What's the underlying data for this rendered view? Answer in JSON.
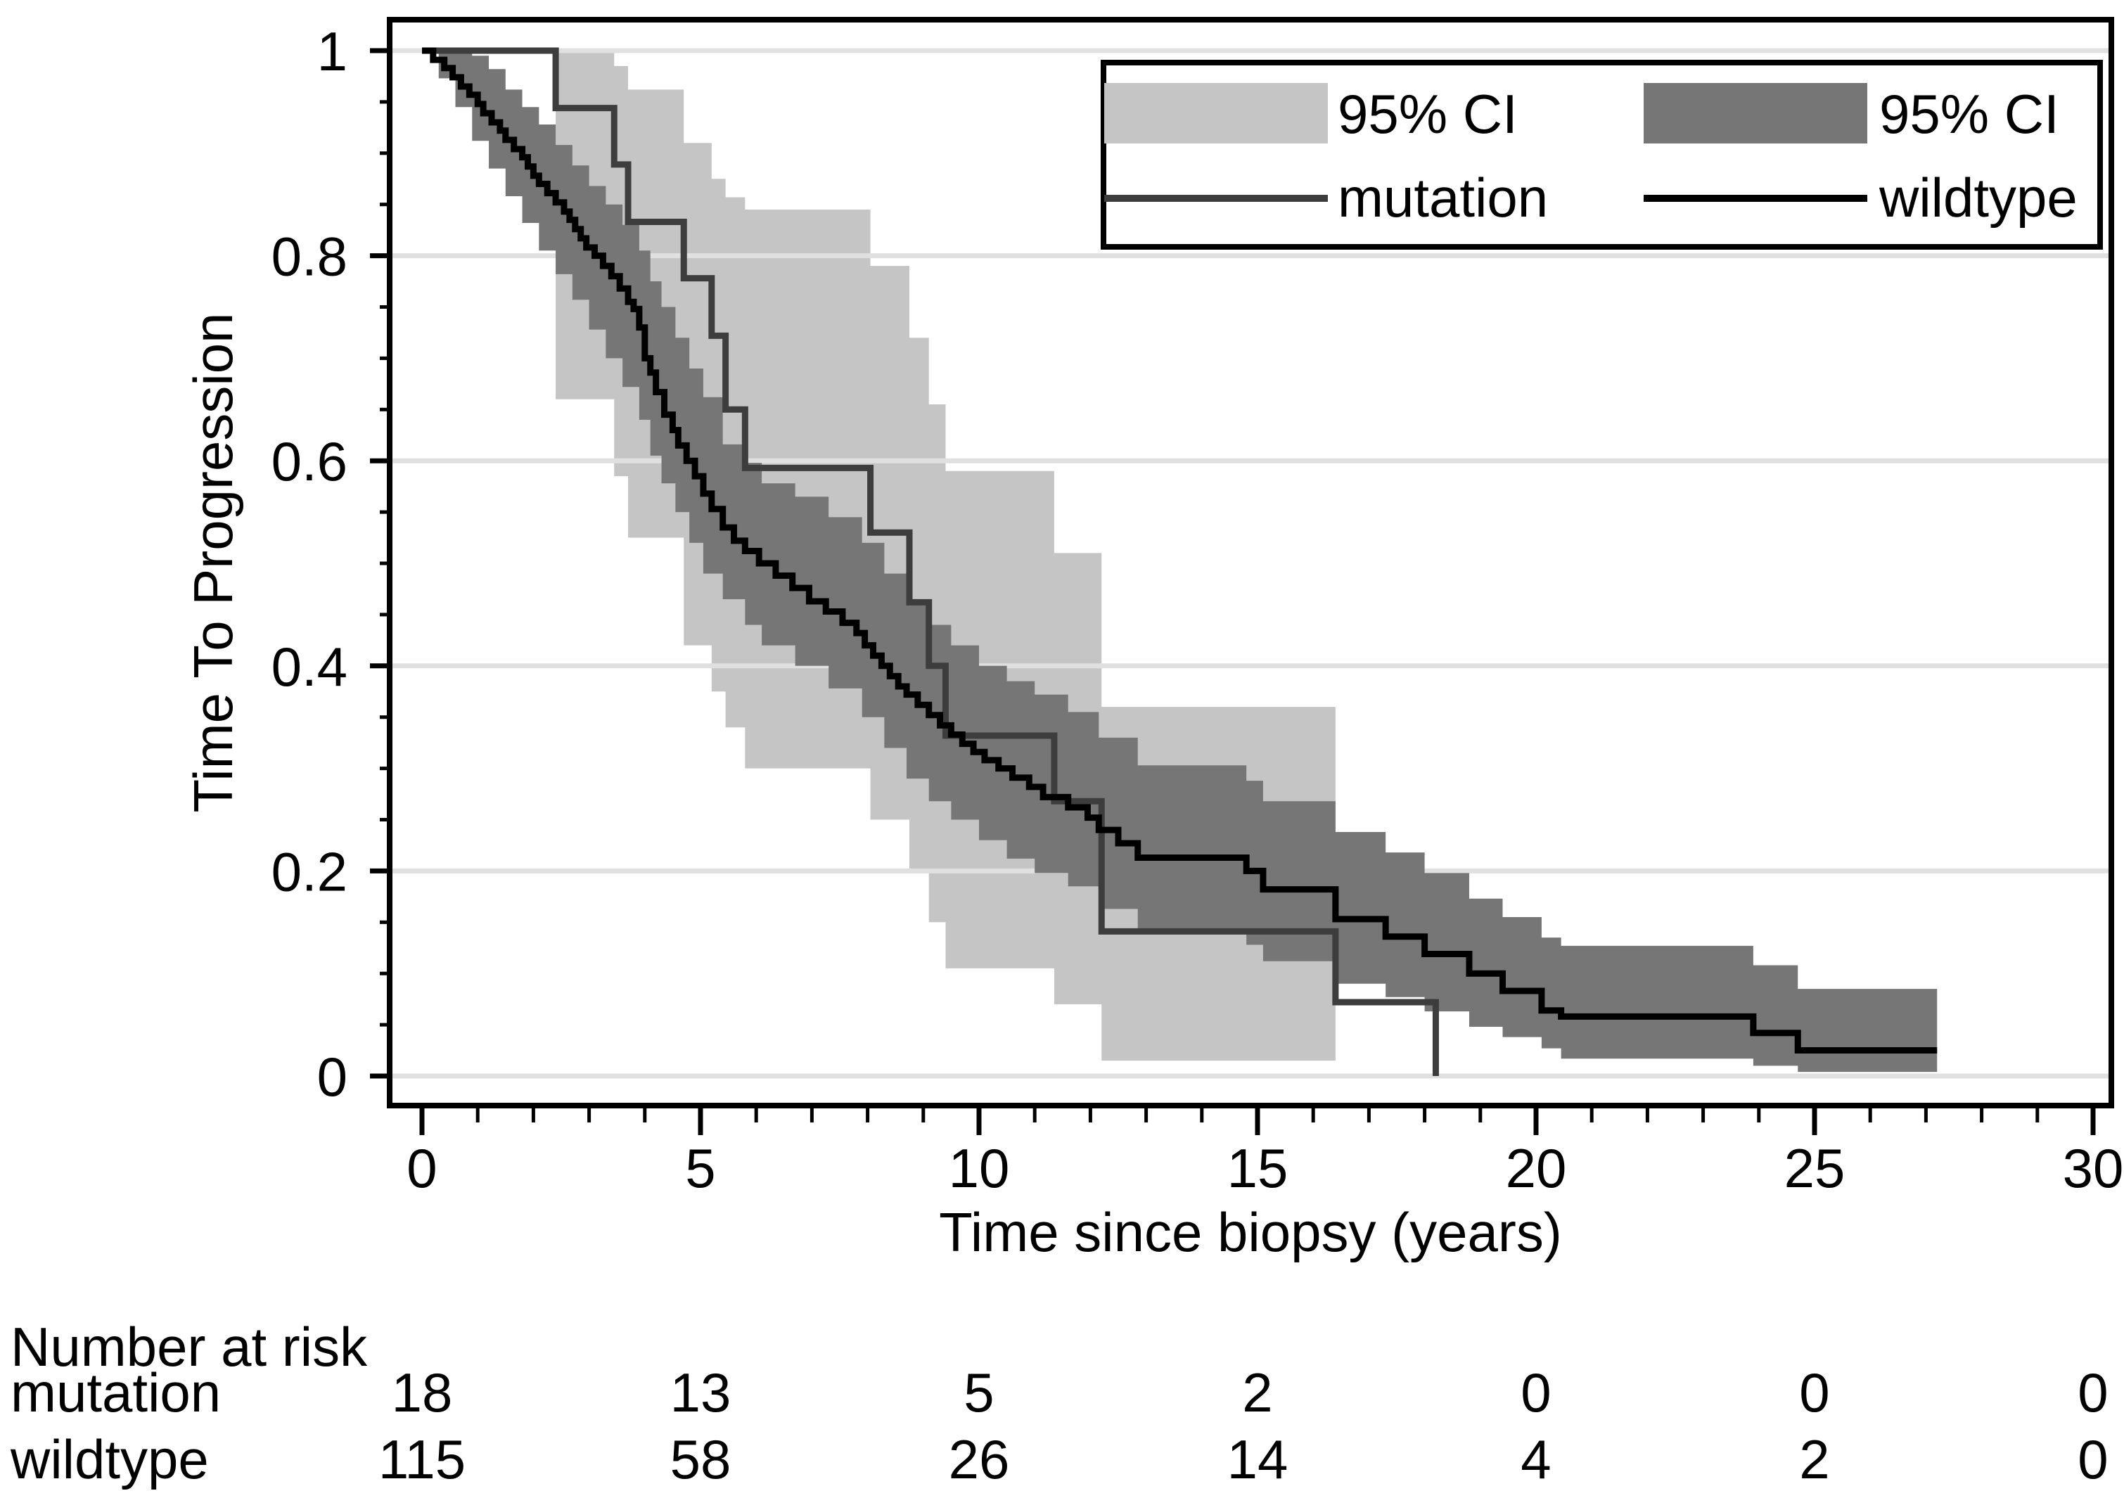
{
  "chart_data": {
    "type": "line",
    "subtype": "kaplan-meier-survival",
    "title": "",
    "xlabel": "Time since biopsy (years)",
    "ylabel": "Time To Progression",
    "xlim": [
      0,
      30
    ],
    "ylim": [
      0,
      1
    ],
    "x_ticks": [
      0,
      5,
      10,
      15,
      20,
      25,
      30
    ],
    "x_minor_tick_step": 1,
    "y_ticks": [
      {
        "value": 1.0,
        "label": "1"
      },
      {
        "value": 0.8,
        "label": "0.8"
      },
      {
        "value": 0.6,
        "label": "0.6"
      },
      {
        "value": 0.4,
        "label": "0.4"
      },
      {
        "value": 0.2,
        "label": "0.2"
      },
      {
        "value": 0.0,
        "label": "0"
      }
    ],
    "y_minor_tick_step": 0.05,
    "grid": "horizontal-major",
    "colors": {
      "mutation_ci_fill": "#c5c5c5",
      "wildtype_ci_fill": "#767676",
      "mutation_line": "#3d3d3d",
      "wildtype_line": "#000000",
      "gridline": "#e0e0e0",
      "axis": "#000000",
      "background": "#ffffff"
    },
    "legend": {
      "position": "top-right",
      "entries": [
        {
          "kind": "swatch",
          "color": "#c5c5c5",
          "label": "95% CI"
        },
        {
          "kind": "swatch",
          "color": "#767676",
          "label": "95% CI"
        },
        {
          "kind": "line",
          "color": "#3d3d3d",
          "label": "mutation"
        },
        {
          "kind": "line",
          "color": "#000000",
          "label": "wildtype"
        }
      ]
    },
    "series": [
      {
        "name": "mutation",
        "kind": "step-curve",
        "color": "#3d3d3d",
        "end_time": 18.2,
        "steps": [
          [
            0,
            1
          ],
          [
            2.4,
            0.944
          ],
          [
            3.45,
            0.889
          ],
          [
            3.7,
            0.833
          ],
          [
            4.7,
            0.778
          ],
          [
            5.2,
            0.722
          ],
          [
            5.45,
            0.65
          ],
          [
            5.8,
            0.593
          ],
          [
            8.05,
            0.53
          ],
          [
            8.75,
            0.462
          ],
          [
            9.1,
            0.4
          ],
          [
            9.4,
            0.332
          ],
          [
            11.35,
            0.268
          ],
          [
            12.2,
            0.141
          ],
          [
            16.4,
            0.072
          ],
          [
            18.2,
            0
          ]
        ]
      },
      {
        "name": "wildtype",
        "kind": "step-curve",
        "color": "#000000",
        "end_time": 27.2,
        "steps": [
          [
            0,
            1
          ],
          [
            0.2,
            0.991
          ],
          [
            0.4,
            0.983
          ],
          [
            0.55,
            0.974
          ],
          [
            0.7,
            0.965
          ],
          [
            0.85,
            0.957
          ],
          [
            1.0,
            0.948
          ],
          [
            1.1,
            0.939
          ],
          [
            1.25,
            0.93
          ],
          [
            1.4,
            0.922
          ],
          [
            1.5,
            0.913
          ],
          [
            1.65,
            0.904
          ],
          [
            1.8,
            0.896
          ],
          [
            1.9,
            0.887
          ],
          [
            2.0,
            0.878
          ],
          [
            2.1,
            0.87
          ],
          [
            2.25,
            0.861
          ],
          [
            2.4,
            0.852
          ],
          [
            2.55,
            0.843
          ],
          [
            2.65,
            0.835
          ],
          [
            2.75,
            0.826
          ],
          [
            2.85,
            0.817
          ],
          [
            2.95,
            0.808
          ],
          [
            3.1,
            0.8
          ],
          [
            3.25,
            0.79
          ],
          [
            3.4,
            0.78
          ],
          [
            3.55,
            0.768
          ],
          [
            3.7,
            0.755
          ],
          [
            3.8,
            0.748
          ],
          [
            3.9,
            0.73
          ],
          [
            4.0,
            0.7
          ],
          [
            4.1,
            0.686
          ],
          [
            4.2,
            0.667
          ],
          [
            4.35,
            0.645
          ],
          [
            4.5,
            0.63
          ],
          [
            4.6,
            0.615
          ],
          [
            4.75,
            0.6
          ],
          [
            4.9,
            0.585
          ],
          [
            5.05,
            0.568
          ],
          [
            5.2,
            0.553
          ],
          [
            5.4,
            0.535
          ],
          [
            5.6,
            0.522
          ],
          [
            5.8,
            0.512
          ],
          [
            6.05,
            0.5
          ],
          [
            6.35,
            0.488
          ],
          [
            6.65,
            0.476
          ],
          [
            6.95,
            0.463
          ],
          [
            7.25,
            0.453
          ],
          [
            7.55,
            0.442
          ],
          [
            7.8,
            0.432
          ],
          [
            7.95,
            0.42
          ],
          [
            8.1,
            0.41
          ],
          [
            8.25,
            0.4
          ],
          [
            8.4,
            0.39
          ],
          [
            8.55,
            0.38
          ],
          [
            8.7,
            0.372
          ],
          [
            8.9,
            0.362
          ],
          [
            9.1,
            0.352
          ],
          [
            9.3,
            0.342
          ],
          [
            9.5,
            0.333
          ],
          [
            9.7,
            0.324
          ],
          [
            9.9,
            0.316
          ],
          [
            10.1,
            0.308
          ],
          [
            10.35,
            0.3
          ],
          [
            10.6,
            0.291
          ],
          [
            10.9,
            0.282
          ],
          [
            11.15,
            0.272
          ],
          [
            11.6,
            0.262
          ],
          [
            11.95,
            0.252
          ],
          [
            12.15,
            0.24
          ],
          [
            12.5,
            0.227
          ],
          [
            12.85,
            0.213
          ],
          [
            14.8,
            0.2
          ],
          [
            15.1,
            0.182
          ],
          [
            16.4,
            0.153
          ],
          [
            17.3,
            0.136
          ],
          [
            18.0,
            0.119
          ],
          [
            18.8,
            0.1
          ],
          [
            19.4,
            0.083
          ],
          [
            20.1,
            0.064
          ],
          [
            20.45,
            0.058
          ],
          [
            23.9,
            0.042
          ],
          [
            24.7,
            0.025
          ]
        ]
      },
      {
        "name": "mutation 95% CI",
        "kind": "confidence-band",
        "color": "#c5c5c5",
        "end_time": 16.4,
        "steps": [
          [
            2.4,
            0.66,
            1.0
          ],
          [
            3.45,
            0.585,
            0.985
          ],
          [
            3.7,
            0.525,
            0.962
          ],
          [
            4.7,
            0.42,
            0.91
          ],
          [
            5.2,
            0.375,
            0.875
          ],
          [
            5.45,
            0.34,
            0.857
          ],
          [
            5.8,
            0.3,
            0.845
          ],
          [
            8.05,
            0.25,
            0.79
          ],
          [
            8.75,
            0.2,
            0.72
          ],
          [
            9.1,
            0.15,
            0.655
          ],
          [
            9.4,
            0.105,
            0.59
          ],
          [
            11.35,
            0.07,
            0.51
          ],
          [
            12.2,
            0.015,
            0.36
          ]
        ]
      },
      {
        "name": "wildtype 95% CI",
        "kind": "confidence-band",
        "color": "#767676",
        "end_time": 27.2,
        "steps": [
          [
            0.3,
            0.973,
            1.0
          ],
          [
            0.6,
            0.945,
            1.0
          ],
          [
            0.9,
            0.912,
            0.995
          ],
          [
            1.2,
            0.885,
            0.982
          ],
          [
            1.5,
            0.858,
            0.962
          ],
          [
            1.8,
            0.832,
            0.945
          ],
          [
            2.1,
            0.805,
            0.928
          ],
          [
            2.4,
            0.782,
            0.908
          ],
          [
            2.7,
            0.757,
            0.888
          ],
          [
            3.0,
            0.728,
            0.868
          ],
          [
            3.3,
            0.7,
            0.85
          ],
          [
            3.6,
            0.672,
            0.83
          ],
          [
            3.9,
            0.64,
            0.805
          ],
          [
            4.1,
            0.605,
            0.775
          ],
          [
            4.3,
            0.578,
            0.75
          ],
          [
            4.55,
            0.55,
            0.72
          ],
          [
            4.8,
            0.52,
            0.69
          ],
          [
            5.05,
            0.49,
            0.662
          ],
          [
            5.4,
            0.465,
            0.616
          ],
          [
            5.8,
            0.44,
            0.598
          ],
          [
            6.1,
            0.42,
            0.578
          ],
          [
            6.7,
            0.4,
            0.565
          ],
          [
            7.3,
            0.378,
            0.545
          ],
          [
            7.9,
            0.35,
            0.52
          ],
          [
            8.3,
            0.32,
            0.49
          ],
          [
            8.7,
            0.29,
            0.46
          ],
          [
            9.1,
            0.268,
            0.44
          ],
          [
            9.5,
            0.25,
            0.42
          ],
          [
            10.0,
            0.23,
            0.4
          ],
          [
            10.5,
            0.212,
            0.385
          ],
          [
            11.0,
            0.198,
            0.372
          ],
          [
            11.6,
            0.185,
            0.355
          ],
          [
            12.15,
            0.163,
            0.33
          ],
          [
            12.85,
            0.14,
            0.303
          ],
          [
            14.8,
            0.128,
            0.288
          ],
          [
            15.1,
            0.112,
            0.268
          ],
          [
            16.4,
            0.09,
            0.238
          ],
          [
            17.3,
            0.077,
            0.218
          ],
          [
            18.0,
            0.063,
            0.198
          ],
          [
            18.8,
            0.048,
            0.173
          ],
          [
            19.4,
            0.038,
            0.155
          ],
          [
            20.1,
            0.027,
            0.135
          ],
          [
            20.45,
            0.017,
            0.127
          ],
          [
            23.9,
            0.01,
            0.108
          ],
          [
            24.7,
            0.004,
            0.085
          ]
        ]
      }
    ],
    "risk_table": {
      "heading": "Number at risk",
      "times": [
        0,
        5,
        10,
        15,
        20,
        25,
        30
      ],
      "rows": [
        {
          "label": "mutation",
          "counts": [
            "18",
            "13",
            "5",
            "2",
            "0",
            "0",
            "0"
          ]
        },
        {
          "label": "wildtype",
          "counts": [
            "115",
            "58",
            "26",
            "14",
            "4",
            "2",
            "0"
          ]
        }
      ]
    }
  }
}
